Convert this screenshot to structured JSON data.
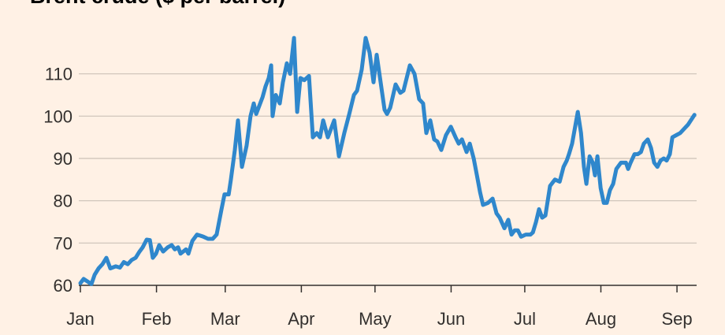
{
  "chart_data": {
    "type": "line",
    "title": "Brent crude ($ per barrel)",
    "x": [
      0,
      1.3,
      4.5,
      5.8,
      7.4,
      9.0,
      10.6,
      12.2,
      14.4,
      16.1,
      17.7,
      19.3,
      20.9,
      22.5,
      24.1,
      25.4,
      27.0,
      28.3,
      29.5,
      30.8,
      32.1,
      33.7,
      35.6,
      37.2,
      38.5,
      39.8,
      40.8,
      43.0,
      44.0,
      45.6,
      47.5,
      50.1,
      52.0,
      53.9,
      55.5,
      57.5,
      58.7,
      60.4,
      61.3,
      62.9,
      64.2,
      65.8,
      67.7,
      69.3,
      70.6,
      71.6,
      74.2,
      75.4,
      76.7,
      77.7,
      78.3,
      79.6,
      81.2,
      82.5,
      84.1,
      85.4,
      87.0,
      88.3,
      89.6,
      91.2,
      93.1,
      94.7,
      96.3,
      97.6,
      98.9,
      100.8,
      103.4,
      105.3,
      107.5,
      109.5,
      111.4,
      112.7,
      114.6,
      116.2,
      117.8,
      119.4,
      120.7,
      122.3,
      123.9,
      124.9,
      126.2,
      128.4,
      130.3,
      131.6,
      134.2,
      136.1,
      138.0,
      139.6,
      140.9,
      142.5,
      144.1,
      145.4,
      147.0,
      148.9,
      150.9,
      152.8,
      154.1,
      155.4,
      157.3,
      158.6,
      160.2,
      161.5,
      162.8,
      164.0,
      166.0,
      167.9,
      169.5,
      170.8,
      172.7,
      174.3,
      175.6,
      176.9,
      178.2,
      179.5,
      181.4,
      183.3,
      184.3,
      185.6,
      186.8,
      188.1,
      189.4,
      191.3,
      193.3,
      195.2,
      196.8,
      198.1,
      199.0,
      200.3,
      202.6,
      203.9,
      205.1,
      206.1,
      207.4,
      208.7,
      209.6,
      210.6,
      211.9,
      213.2,
      214.4,
      215.7,
      217.0,
      218.3,
      220.2,
      222.2,
      223.1,
      224.1,
      225.7,
      227.0,
      228.3,
      229.5,
      231.1,
      232.4,
      233.7,
      235.0,
      236.3,
      237.6,
      238.8,
      240.1,
      241.1,
      242.7,
      244.3,
      245.9,
      247.5,
      250.1
    ],
    "series": [
      {
        "color": "#2f87cc",
        "values": [
          60.5,
          61.5,
          60.3,
          62.5,
          64,
          65,
          66.5,
          64,
          64.5,
          64.2,
          65.5,
          65,
          66,
          66.5,
          68,
          69,
          70.8,
          70.7,
          66.5,
          67.5,
          69.5,
          68,
          69,
          69.5,
          68.5,
          69,
          67.5,
          68.5,
          67.5,
          70.5,
          72,
          71.5,
          71,
          71,
          72,
          78,
          81.5,
          81.5,
          85,
          92,
          99,
          88,
          93,
          100,
          103,
          100.5,
          104.5,
          107,
          109,
          112,
          100,
          105,
          103,
          108,
          112.5,
          110,
          118.5,
          101,
          109,
          108.5,
          109.5,
          95,
          96,
          95,
          99,
          95,
          99,
          90.5,
          96,
          100.5,
          105,
          106,
          111,
          118.5,
          115,
          108,
          114.5,
          108,
          101.5,
          100.5,
          102,
          107.5,
          105.5,
          106,
          112,
          110,
          104,
          103,
          96,
          99,
          94.5,
          94,
          92,
          95.5,
          97.5,
          95,
          93.5,
          94.5,
          91.5,
          93.5,
          90,
          86,
          82,
          79,
          79.5,
          80.5,
          77,
          76,
          73.5,
          75.5,
          72,
          73,
          73,
          71.5,
          72,
          72,
          72.5,
          75,
          78,
          76,
          76.5,
          83.5,
          85,
          84.5,
          88,
          89.5,
          91,
          93.5,
          101,
          96,
          88,
          84,
          90.5,
          89,
          86,
          90.5,
          83,
          79.5,
          79.5,
          82.5,
          84,
          87.5,
          89,
          89,
          87.5,
          89,
          91,
          91,
          91.5,
          93.5,
          94.5,
          92.5,
          89,
          88,
          89.5,
          90,
          89.5,
          91,
          95,
          95.5,
          96,
          97,
          98,
          100.3
        ]
      }
    ],
    "xlim": [
      0,
      251
    ],
    "xticks": [
      {
        "value": 0,
        "label": "Jan"
      },
      {
        "value": 31,
        "label": "Feb"
      },
      {
        "value": 59,
        "label": "Mar"
      },
      {
        "value": 90,
        "label": "Apr"
      },
      {
        "value": 120,
        "label": "May"
      },
      {
        "value": 151,
        "label": "Jun"
      },
      {
        "value": 181,
        "label": "Jul"
      },
      {
        "value": 212,
        "label": "Aug"
      },
      {
        "value": 243,
        "label": "Sep"
      }
    ],
    "ylim": [
      60,
      120
    ],
    "yticks": [
      60,
      70,
      80,
      90,
      100,
      110
    ],
    "grid": true
  }
}
